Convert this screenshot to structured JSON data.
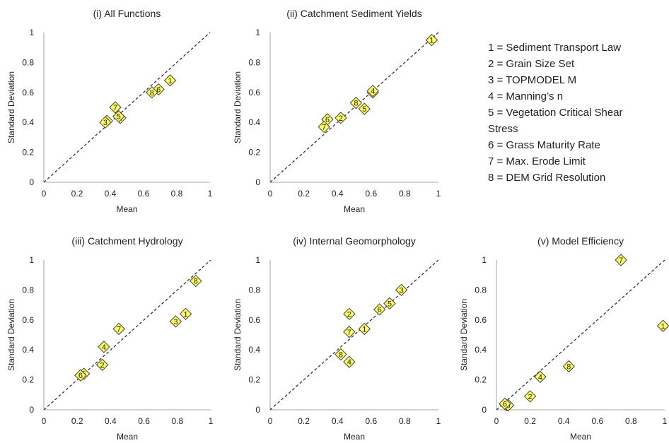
{
  "chart_data": [
    {
      "type": "scatter",
      "title": "(i) All Functions",
      "xlabel": "Mean",
      "ylabel": "Standard Deviation",
      "xlim": [
        0,
        1
      ],
      "ylim": [
        0,
        1
      ],
      "xticks": [
        "0",
        "0.2",
        "0.4",
        "0.6",
        "0.8",
        "1"
      ],
      "yticks": [
        "0",
        "0.2",
        "0.4",
        "0.6",
        "0.8",
        "1"
      ],
      "reference_line": "y = x",
      "points": [
        {
          "label": "1",
          "x": 0.76,
          "y": 0.68
        },
        {
          "label": "2",
          "x": 0.38,
          "y": 0.41
        },
        {
          "label": "3",
          "x": 0.37,
          "y": 0.4
        },
        {
          "label": "4",
          "x": 0.46,
          "y": 0.43
        },
        {
          "label": "5",
          "x": 0.45,
          "y": 0.44
        },
        {
          "label": "6",
          "x": 0.69,
          "y": 0.62
        },
        {
          "label": "7",
          "x": 0.43,
          "y": 0.5
        },
        {
          "label": "8",
          "x": 0.65,
          "y": 0.6
        }
      ]
    },
    {
      "type": "scatter",
      "title": "(ii) Catchment Sediment Yields",
      "xlabel": "Mean",
      "ylabel": "Standard Deviation",
      "xlim": [
        0,
        1
      ],
      "ylim": [
        0,
        1
      ],
      "xticks": [
        "0",
        "0.2",
        "0.4",
        "0.6",
        "0.8",
        "1"
      ],
      "yticks": [
        "0",
        "0.2",
        "0.4",
        "0.6",
        "0.8",
        "1"
      ],
      "reference_line": "y = x",
      "points": [
        {
          "label": "1",
          "x": 0.96,
          "y": 0.95
        },
        {
          "label": "2",
          "x": 0.42,
          "y": 0.43
        },
        {
          "label": "3",
          "x": 0.61,
          "y": 0.6
        },
        {
          "label": "4",
          "x": 0.61,
          "y": 0.61
        },
        {
          "label": "5",
          "x": 0.56,
          "y": 0.49
        },
        {
          "label": "6",
          "x": 0.34,
          "y": 0.42
        },
        {
          "label": "7",
          "x": 0.32,
          "y": 0.37
        },
        {
          "label": "8",
          "x": 0.51,
          "y": 0.53
        }
      ]
    },
    {
      "type": "scatter",
      "title": "(iii) Catchment Hydrology",
      "xlabel": "Mean",
      "ylabel": "Standard Deviation",
      "xlim": [
        0,
        1
      ],
      "ylim": [
        0,
        1
      ],
      "xticks": [
        "0",
        "0.2",
        "0.4",
        "0.6",
        "0.8",
        "1"
      ],
      "yticks": [
        "0",
        "0.2",
        "0.4",
        "0.6",
        "0.8",
        "1"
      ],
      "reference_line": "y = x",
      "points": [
        {
          "label": "1",
          "x": 0.85,
          "y": 0.64
        },
        {
          "label": "2",
          "x": 0.35,
          "y": 0.3
        },
        {
          "label": "3",
          "x": 0.79,
          "y": 0.59
        },
        {
          "label": "4",
          "x": 0.36,
          "y": 0.42
        },
        {
          "label": "5",
          "x": 0.24,
          "y": 0.24
        },
        {
          "label": "6",
          "x": 0.22,
          "y": 0.23
        },
        {
          "label": "7",
          "x": 0.45,
          "y": 0.54
        },
        {
          "label": "8",
          "x": 0.91,
          "y": 0.86
        }
      ]
    },
    {
      "type": "scatter",
      "title": "(iv) Internal Geomorphology",
      "xlabel": "Mean",
      "ylabel": "Standard Deviation",
      "xlim": [
        0,
        1
      ],
      "ylim": [
        0,
        1
      ],
      "xticks": [
        "0",
        "0.2",
        "0.4",
        "0.6",
        "0.8",
        "1"
      ],
      "yticks": [
        "0",
        "0.2",
        "0.4",
        "0.6",
        "0.8",
        "1"
      ],
      "reference_line": "y = x",
      "points": [
        {
          "label": "1",
          "x": 0.56,
          "y": 0.54
        },
        {
          "label": "2",
          "x": 0.47,
          "y": 0.64
        },
        {
          "label": "3",
          "x": 0.78,
          "y": 0.8
        },
        {
          "label": "4",
          "x": 0.47,
          "y": 0.32
        },
        {
          "label": "5",
          "x": 0.71,
          "y": 0.71
        },
        {
          "label": "6",
          "x": 0.65,
          "y": 0.67
        },
        {
          "label": "7",
          "x": 0.47,
          "y": 0.52
        },
        {
          "label": "8",
          "x": 0.42,
          "y": 0.37
        }
      ]
    },
    {
      "type": "scatter",
      "title": "(v) Model Efficiency",
      "xlabel": "Mean",
      "ylabel": "Standard Deviation",
      "xlim": [
        0,
        1
      ],
      "ylim": [
        0,
        1
      ],
      "xticks": [
        "0",
        "0.2",
        "0.4",
        "0.6",
        "0.8",
        "1"
      ],
      "yticks": [
        "0",
        "0.2",
        "0.4",
        "0.6",
        "0.8",
        "1"
      ],
      "reference_line": "y = x",
      "points": [
        {
          "label": "1",
          "x": 0.99,
          "y": 0.56
        },
        {
          "label": "2",
          "x": 0.2,
          "y": 0.09
        },
        {
          "label": "3",
          "x": 0.06,
          "y": 0.03
        },
        {
          "label": "4",
          "x": 0.26,
          "y": 0.22
        },
        {
          "label": "5",
          "x": 0.07,
          "y": 0.03
        },
        {
          "label": "6",
          "x": 0.05,
          "y": 0.04
        },
        {
          "label": "7",
          "x": 0.74,
          "y": 1.0
        },
        {
          "label": "8",
          "x": 0.43,
          "y": 0.29
        }
      ]
    }
  ],
  "legend": {
    "items": [
      "1 = Sediment Transport Law",
      "2 = Grain Size Set",
      "3 = TOPMODEL M",
      "4 = Manning’s n",
      "5 = Vegetation Critical Shear",
      "Stress",
      "6 = Grass Maturity Rate",
      "7 = Max. Erode Limit",
      "8 = DEM Grid Resolution"
    ]
  },
  "colors": {
    "marker_fill": "#ffff66",
    "marker_stroke": "#404040",
    "reference_line": "#333333",
    "axis": "#a6a6a6",
    "text": "#222222"
  }
}
